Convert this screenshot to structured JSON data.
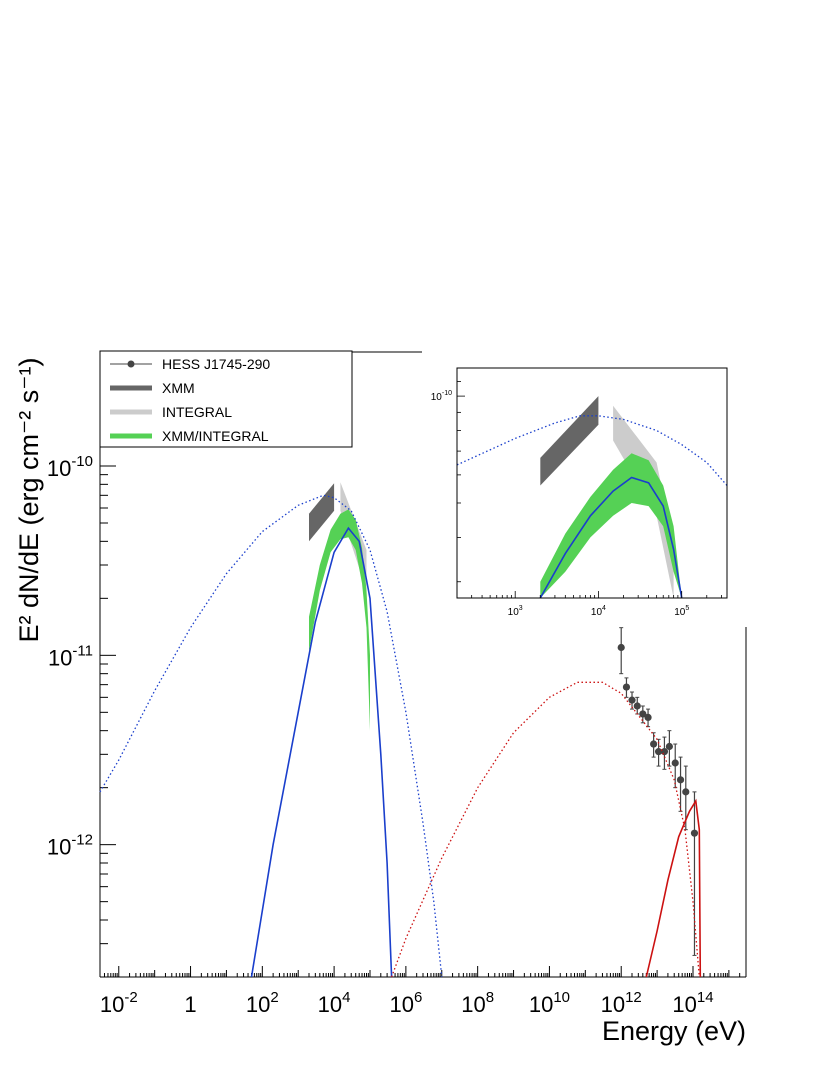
{
  "chart_data": [
    {
      "type": "scatter",
      "log_x": true,
      "log_y": true,
      "xlim": [
        0.003,
        3000000000000000.0
      ],
      "ylim": [
        2e-13,
        4e-10
      ],
      "xlabel": "Energy (eV)",
      "ylabel": "E² dN/dE (erg cm⁻² s⁻¹)",
      "x_tick_labels": [
        {
          "value": 0.01,
          "base": "10",
          "exp": "-2"
        },
        {
          "value": 1,
          "base": "1",
          "exp": ""
        },
        {
          "value": 100,
          "base": "10",
          "exp": "2"
        },
        {
          "value": 10000,
          "base": "10",
          "exp": "4"
        },
        {
          "value": 1000000,
          "base": "10",
          "exp": "6"
        },
        {
          "value": 100000000,
          "base": "10",
          "exp": "8"
        },
        {
          "value": 10000000000,
          "base": "10",
          "exp": "10"
        },
        {
          "value": 1000000000000,
          "base": "10",
          "exp": "12"
        },
        {
          "value": 100000000000000,
          "base": "10",
          "exp": "14"
        }
      ],
      "y_tick_labels": [
        {
          "value": 1e-10,
          "base": "10",
          "exp": "-10"
        },
        {
          "value": 1e-11,
          "base": "10",
          "exp": "-11"
        },
        {
          "value": 1e-12,
          "base": "10",
          "exp": "-12"
        }
      ],
      "legend": {
        "placement": "top-left",
        "entries": [
          {
            "label": "HESS J1745-290",
            "style": "marker-line",
            "color": "#444444"
          },
          {
            "label": "XMM",
            "style": "thick-line",
            "color": "#666666"
          },
          {
            "label": "INTEGRAL",
            "style": "thick-line",
            "color": "#cccccc"
          },
          {
            "label": "XMM/INTEGRAL",
            "style": "thick-line",
            "color": "#55d155"
          }
        ]
      },
      "series": [
        {
          "name": "HESS J1745-290",
          "kind": "points",
          "color": "#444444",
          "points": [
            {
              "x": 1000000000000.0,
              "y": 1.1e-11,
              "ylo": 8e-12,
              "yhi": 1.4e-11
            },
            {
              "x": 1400000000000.0,
              "y": 6.8e-12,
              "ylo": 6e-12,
              "yhi": 7.6e-12
            },
            {
              "x": 2000000000000.0,
              "y": 5.8e-12,
              "ylo": 5.2e-12,
              "yhi": 6.4e-12
            },
            {
              "x": 2800000000000.0,
              "y": 5.4e-12,
              "ylo": 4.9e-12,
              "yhi": 6e-12
            },
            {
              "x": 4000000000000.0,
              "y": 4.9e-12,
              "ylo": 4.4e-12,
              "yhi": 5.4e-12
            },
            {
              "x": 5600000000000.0,
              "y": 4.7e-12,
              "ylo": 4.2e-12,
              "yhi": 5.2e-12
            },
            {
              "x": 8000000000000.0,
              "y": 3.4e-12,
              "ylo": 2.9e-12,
              "yhi": 3.9e-12
            },
            {
              "x": 11000000000000.0,
              "y": 3.1e-12,
              "ylo": 2.6e-12,
              "yhi": 3.6e-12
            },
            {
              "x": 16000000000000.0,
              "y": 3.1e-12,
              "ylo": 2.5e-12,
              "yhi": 3.7e-12
            },
            {
              "x": 22000000000000.0,
              "y": 3.3e-12,
              "ylo": 2.6e-12,
              "yhi": 4e-12
            },
            {
              "x": 32000000000000.0,
              "y": 2.7e-12,
              "ylo": 2e-12,
              "yhi": 3.4e-12
            },
            {
              "x": 45000000000000.0,
              "y": 2.2e-12,
              "ylo": 1.5e-12,
              "yhi": 2.9e-12
            },
            {
              "x": 63000000000000.0,
              "y": 1.9e-12,
              "ylo": 1.2e-12,
              "yhi": 2.6e-12
            },
            {
              "x": 110000000000000.0,
              "y": 1.15e-12,
              "ylo": 2.6e-13,
              "yhi": 1.9e-12
            }
          ]
        },
        {
          "name": "XMM",
          "kind": "band",
          "color": "#666666",
          "x": [
            2000,
            10000
          ],
          "upper": [
            5.6e-11,
            8.1e-11
          ],
          "lower": [
            4e-11,
            5.8e-11
          ]
        },
        {
          "name": "INTEGRAL",
          "kind": "band",
          "color": "#cccccc",
          "x": [
            15000,
            80000
          ],
          "upper": [
            8.2e-11,
            3.6e-11
          ],
          "lower": [
            5.8e-11,
            2.2e-11
          ]
        },
        {
          "name": "XMM/INTEGRAL",
          "kind": "band",
          "color": "#55d155",
          "x": [
            2000,
            4000,
            8000,
            15000,
            25000,
            40000,
            60000,
            80000,
            100000
          ],
          "upper": [
            1.6e-11,
            3e-11,
            4.6e-11,
            5.6e-11,
            5.9e-11,
            5.2e-11,
            3.7e-11,
            2.2e-11,
            1e-11
          ],
          "lower": [
            1.05e-11,
            2.2e-11,
            3.5e-11,
            4.1e-11,
            4.2e-11,
            3.6e-11,
            2.4e-11,
            1.4e-11,
            4e-12
          ]
        },
        {
          "name": "",
          "kind": "line",
          "color": "#1a3fcc",
          "stroke": "solid",
          "x": [
            50,
            200,
            1000,
            3000,
            10000,
            25000,
            50000,
            100000,
            200000,
            300000,
            400000
          ],
          "y": [
            2e-13,
            1e-12,
            5e-12,
            1.5e-11,
            3.5e-11,
            4.7e-11,
            4e-11,
            2e-11,
            3e-12,
            8e-13,
            2e-13
          ]
        },
        {
          "name": "",
          "kind": "line",
          "color": "#1a3fcc",
          "stroke": "dotted",
          "x": [
            0.003,
            0.01,
            0.1,
            1,
            10,
            100,
            1000,
            5000,
            10000,
            30000,
            100000,
            300000,
            1000000,
            3000000,
            6000000,
            10000000
          ],
          "y": [
            1.9e-12,
            2.8e-12,
            6.5e-12,
            1.4e-11,
            2.7e-11,
            4.5e-11,
            6.2e-11,
            7e-11,
            6.8e-11,
            5.8e-11,
            3.6e-11,
            1.7e-11,
            5e-12,
            1.3e-12,
            5e-13,
            2e-13
          ]
        },
        {
          "name": "",
          "kind": "line",
          "color": "#cc1111",
          "stroke": "dotted",
          "x": [
            400000,
            1000000,
            10000000,
            100000000,
            1000000000,
            10000000000,
            60000000000,
            300000000000,
            1000000000000,
            10000000000000,
            30000000000000,
            60000000000000,
            100000000000000,
            150000000000000
          ],
          "y": [
            2e-13,
            3.2e-13,
            8.5e-13,
            2e-12,
            3.9e-12,
            6e-12,
            7.2e-12,
            7.2e-12,
            6.3e-12,
            3.6e-12,
            2.2e-12,
            1.2e-12,
            5e-13,
            2e-13
          ]
        },
        {
          "name": "",
          "kind": "line",
          "color": "#cc1111",
          "stroke": "solid",
          "x": [
            5000000000000,
            10000000000000,
            20000000000000,
            40000000000000,
            80000000000000,
            120000000000000,
            150000000000000,
            160000000000000
          ],
          "y": [
            2e-13,
            3.5e-13,
            6.5e-13,
            1.1e-12,
            1.5e-12,
            1.7e-12,
            1.2e-12,
            2e-13
          ]
        }
      ]
    },
    {
      "type": "area",
      "inset": true,
      "log_x": true,
      "log_y": true,
      "xlim": [
        200,
        350000
      ],
      "ylim": [
        2.7e-11,
        1.2e-10
      ],
      "x_tick_labels": [
        {
          "value": 1000,
          "base": "10",
          "exp": "3"
        },
        {
          "value": 10000,
          "base": "10",
          "exp": "4"
        },
        {
          "value": 100000,
          "base": "10",
          "exp": "5"
        }
      ],
      "y_tick_labels": [
        {
          "value": 1e-10,
          "base": "10",
          "exp": "-10"
        }
      ],
      "series": [
        {
          "name": "XMM",
          "kind": "band",
          "color": "#666666",
          "x": [
            2000,
            10000
          ],
          "upper": [
            6.7e-11,
            1e-10
          ],
          "lower": [
            5.6e-11,
            8.3e-11
          ]
        },
        {
          "name": "INTEGRAL",
          "kind": "band",
          "color": "#cccccc",
          "x": [
            15000,
            50000,
            80000
          ],
          "upper": [
            9.4e-11,
            6.5e-11,
            3.8e-11
          ],
          "lower": [
            7.5e-11,
            4.6e-11,
            2.7e-11
          ]
        },
        {
          "name": "XMM/INTEGRAL",
          "kind": "band",
          "color": "#55d155",
          "x": [
            2000,
            4000,
            8000,
            15000,
            25000,
            40000,
            60000,
            80000,
            100000
          ],
          "upper": [
            3e-11,
            4.1e-11,
            5.2e-11,
            6.2e-11,
            6.9e-11,
            6.6e-11,
            5.6e-11,
            4.3e-11,
            2.7e-11
          ],
          "lower": [
            2.7e-11,
            3.2e-11,
            4e-11,
            4.6e-11,
            5e-11,
            4.9e-11,
            4.3e-11,
            3.2e-11,
            2.7e-11
          ]
        },
        {
          "name": "",
          "kind": "line",
          "color": "#1a3fcc",
          "stroke": "solid",
          "x": [
            2000,
            4000,
            8000,
            15000,
            25000,
            40000,
            60000,
            80000,
            100000
          ],
          "y": [
            2.7e-11,
            3.6e-11,
            4.6e-11,
            5.4e-11,
            5.9e-11,
            5.7e-11,
            4.9e-11,
            3.7e-11,
            2.7e-11
          ]
        },
        {
          "name": "",
          "kind": "line",
          "color": "#1a3fcc",
          "stroke": "dotted",
          "x": [
            200,
            1000,
            3000,
            6000,
            10000,
            20000,
            50000,
            100000,
            200000,
            350000
          ],
          "y": [
            6.4e-11,
            7.6e-11,
            8.4e-11,
            8.8e-11,
            8.8e-11,
            8.6e-11,
            8e-11,
            7.3e-11,
            6.5e-11,
            5.6e-11
          ]
        }
      ]
    }
  ]
}
